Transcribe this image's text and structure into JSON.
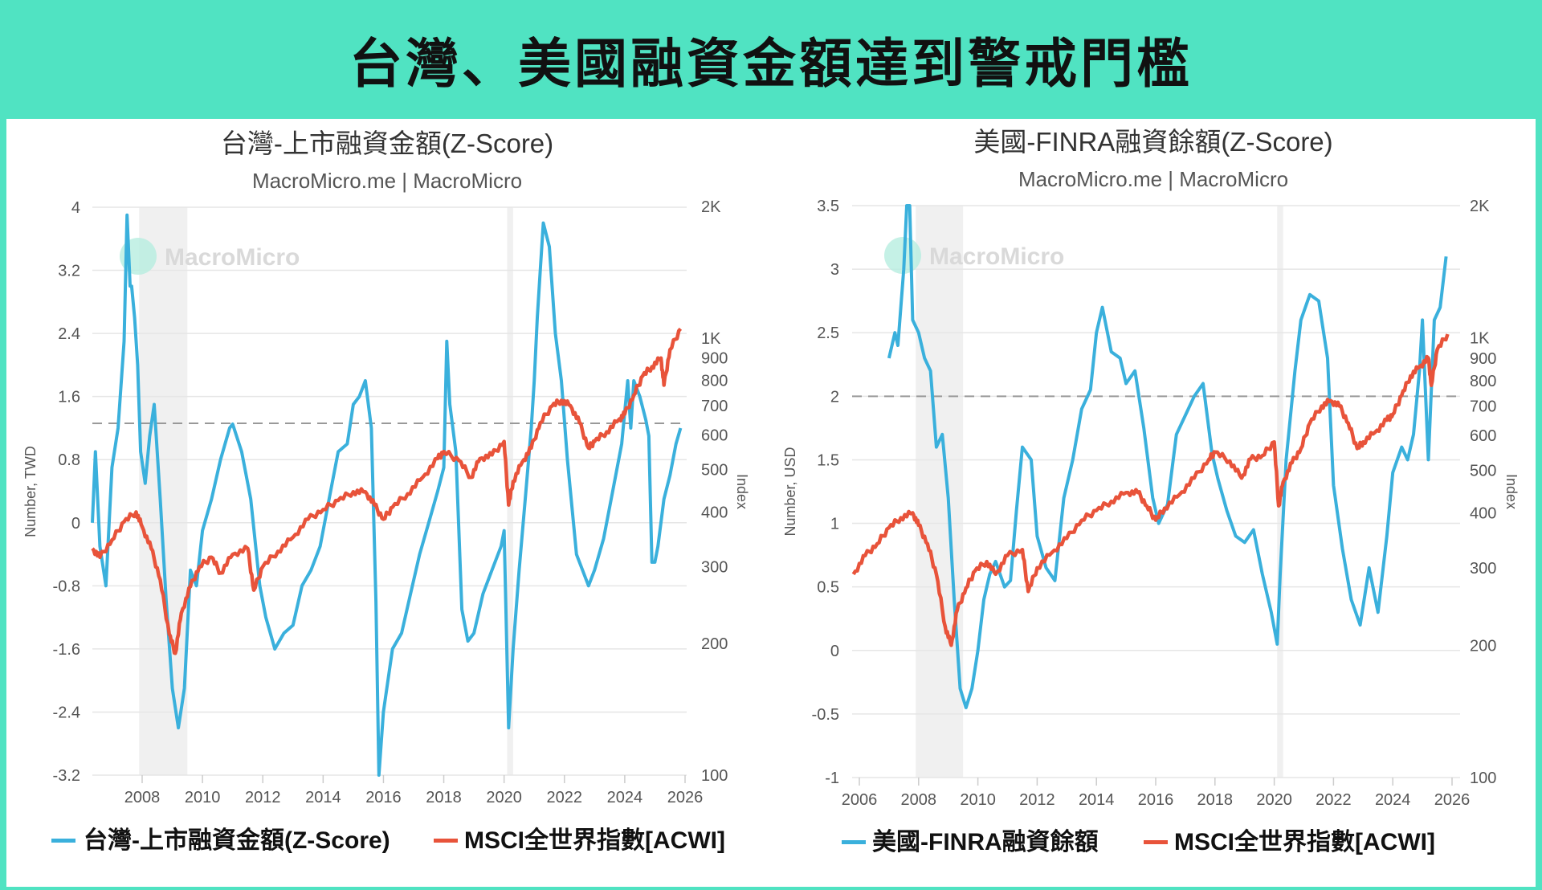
{
  "banner": {
    "title": "台灣、美國融資金額達到警戒門檻"
  },
  "colors": {
    "background": "#50e3c2",
    "zscore": "#3ab0dc",
    "msci": "#e8533a",
    "threshold": "#999999",
    "recession": "#f0f0f0"
  },
  "watermark": "MacroMicro",
  "left_chart": {
    "title": "台灣-上市融資金額(Z-Score)",
    "subtitle": "MacroMicro.me | MacroMicro",
    "y_left_label": "Number, TWD",
    "y_right_label": "Index",
    "y_left_ticks": [
      "4",
      "3.2",
      "2.4",
      "1.6",
      "0.8",
      "0",
      "-0.8",
      "-1.6",
      "-2.4",
      "-3.2"
    ],
    "y_right_ticks": [
      "2K",
      "1K",
      "900",
      "800",
      "700",
      "600",
      "500",
      "400",
      "300",
      "200",
      "100"
    ],
    "x_ticks": [
      "2008",
      "2010",
      "2012",
      "2014",
      "2016",
      "2018",
      "2020",
      "2022",
      "2024",
      "2026"
    ],
    "legend": [
      "台灣-上市融資金額(Z-Score)",
      "MSCI全世界指數[ACWI]"
    ]
  },
  "right_chart": {
    "title": "美國-FINRA融資餘額(Z-Score)",
    "subtitle": "MacroMicro.me | MacroMicro",
    "y_left_label": "Number, USD",
    "y_right_label": "Index",
    "y_left_ticks": [
      "3.5",
      "3",
      "2.5",
      "2",
      "1.5",
      "1",
      "0.5",
      "0",
      "-0.5",
      "-1"
    ],
    "y_right_ticks": [
      "2K",
      "1K",
      "900",
      "800",
      "700",
      "600",
      "500",
      "400",
      "300",
      "200",
      "100"
    ],
    "x_ticks": [
      "2006",
      "2008",
      "2010",
      "2012",
      "2014",
      "2016",
      "2018",
      "2020",
      "2022",
      "2024",
      "2026"
    ],
    "legend": [
      "美國-FINRA融資餘額",
      "MSCI全世界指數[ACWI]"
    ]
  },
  "chart_data": [
    {
      "type": "line",
      "title": "台灣-上市融資金額(Z-Score)",
      "subtitle": "MacroMicro.me | MacroMicro",
      "xlabel": "",
      "ylabel": "Number, TWD",
      "y2label": "Index",
      "ylim": [
        -3.2,
        4
      ],
      "y2lim": [
        100,
        2000
      ],
      "y2scale": "log",
      "xlim": [
        2006.3,
        2026
      ],
      "threshold": 1.26,
      "recessions": [
        [
          2007.9,
          2009.5
        ],
        [
          2020.1,
          2020.3
        ]
      ],
      "legend_position": "bottom",
      "grid": true,
      "series": [
        {
          "name": "台灣-上市融資金額(Z-Score)",
          "axis": "left",
          "x": [
            2006.35,
            2006.45,
            2006.6,
            2006.8,
            2007.0,
            2007.2,
            2007.4,
            2007.5,
            2007.6,
            2007.65,
            2007.75,
            2007.85,
            2007.95,
            2008.1,
            2008.25,
            2008.4,
            2008.6,
            2008.8,
            2009.0,
            2009.2,
            2009.4,
            2009.6,
            2009.8,
            2010.0,
            2010.3,
            2010.6,
            2010.9,
            2011.0,
            2011.3,
            2011.6,
            2011.9,
            2012.1,
            2012.4,
            2012.7,
            2013.0,
            2013.3,
            2013.6,
            2013.9,
            2014.2,
            2014.5,
            2014.8,
            2015.0,
            2015.2,
            2015.4,
            2015.6,
            2015.75,
            2015.85,
            2016.0,
            2016.3,
            2016.6,
            2016.9,
            2017.2,
            2017.5,
            2017.8,
            2018.0,
            2018.1,
            2018.2,
            2018.4,
            2018.6,
            2018.8,
            2019.0,
            2019.3,
            2019.6,
            2019.9,
            2020.0,
            2020.15,
            2020.3,
            2020.5,
            2020.7,
            2020.9,
            2021.0,
            2021.1,
            2021.2,
            2021.3,
            2021.5,
            2021.7,
            2021.9,
            2022.1,
            2022.4,
            2022.6,
            2022.8,
            2023.0,
            2023.3,
            2023.6,
            2023.9,
            2024.1,
            2024.2,
            2024.3,
            2024.5,
            2024.7,
            2024.8,
            2024.9,
            2025.0,
            2025.1,
            2025.3,
            2025.5,
            2025.7,
            2025.85
          ],
          "values": [
            0.0,
            0.9,
            -0.3,
            -0.8,
            0.7,
            1.2,
            2.3,
            3.9,
            3.0,
            3.0,
            2.6,
            2.0,
            0.9,
            0.5,
            1.1,
            1.5,
            0.3,
            -1.0,
            -2.1,
            -2.6,
            -2.1,
            -0.6,
            -0.8,
            -0.1,
            0.3,
            0.8,
            1.2,
            1.25,
            0.9,
            0.3,
            -0.8,
            -1.2,
            -1.6,
            -1.4,
            -1.3,
            -0.8,
            -0.6,
            -0.3,
            0.3,
            0.9,
            1.0,
            1.5,
            1.6,
            1.8,
            1.2,
            -1.0,
            -3.2,
            -2.4,
            -1.6,
            -1.4,
            -0.9,
            -0.4,
            0.0,
            0.4,
            0.7,
            2.3,
            1.5,
            0.9,
            -1.1,
            -1.5,
            -1.4,
            -0.9,
            -0.6,
            -0.3,
            -0.1,
            -2.6,
            -1.6,
            -0.6,
            0.3,
            1.2,
            1.8,
            2.6,
            3.2,
            3.8,
            3.5,
            2.4,
            1.8,
            0.8,
            -0.4,
            -0.6,
            -0.8,
            -0.6,
            -0.2,
            0.4,
            1.0,
            1.8,
            1.2,
            1.8,
            1.6,
            1.3,
            1.1,
            -0.5,
            -0.5,
            -0.3,
            0.3,
            0.6,
            1.0,
            1.2
          ]
        },
        {
          "name": "MSCI全世界指數[ACWI]",
          "axis": "right",
          "x": [
            2006.35,
            2006.6,
            2007.0,
            2007.4,
            2007.8,
            2008.0,
            2008.3,
            2008.6,
            2008.9,
            2009.1,
            2009.3,
            2009.6,
            2009.9,
            2010.3,
            2010.6,
            2011.0,
            2011.5,
            2011.7,
            2012.0,
            2012.5,
            2013.0,
            2013.5,
            2014.0,
            2014.5,
            2015.0,
            2015.4,
            2015.7,
            2016.0,
            2016.3,
            2016.8,
            2017.3,
            2017.8,
            2018.0,
            2018.5,
            2018.9,
            2019.2,
            2019.6,
            2020.0,
            2020.15,
            2020.3,
            2020.6,
            2020.9,
            2021.2,
            2021.6,
            2021.9,
            2022.2,
            2022.5,
            2022.8,
            2023.0,
            2023.4,
            2023.8,
            2024.0,
            2024.3,
            2024.6,
            2024.9,
            2025.2,
            2025.3,
            2025.5,
            2025.85
          ],
          "values": [
            330,
            315,
            345,
            380,
            400,
            370,
            330,
            280,
            210,
            190,
            235,
            270,
            300,
            315,
            290,
            320,
            330,
            265,
            300,
            325,
            350,
            385,
            405,
            425,
            445,
            445,
            415,
            385,
            410,
            440,
            480,
            530,
            550,
            525,
            480,
            530,
            540,
            580,
            415,
            470,
            520,
            560,
            640,
            700,
            720,
            700,
            640,
            560,
            580,
            610,
            650,
            670,
            740,
            820,
            860,
            900,
            780,
            940,
            1050
          ]
        }
      ]
    },
    {
      "type": "line",
      "title": "美國-FINRA融資餘額(Z-Score)",
      "subtitle": "MacroMicro.me | MacroMicro",
      "xlabel": "",
      "ylabel": "Number, USD",
      "y2label": "Index",
      "ylim": [
        -1,
        3.5
      ],
      "y2lim": [
        100,
        2000
      ],
      "y2scale": "log",
      "xlim": [
        2005.8,
        2026
      ],
      "threshold": 2.0,
      "recessions": [
        [
          2007.9,
          2009.5
        ],
        [
          2020.1,
          2020.3
        ]
      ],
      "legend_position": "bottom",
      "grid": true,
      "series": [
        {
          "name": "美國-FINRA融資餘額",
          "axis": "left",
          "x": [
            2007.0,
            2007.2,
            2007.3,
            2007.5,
            2007.6,
            2007.7,
            2007.8,
            2008.0,
            2008.2,
            2008.4,
            2008.6,
            2008.8,
            2009.0,
            2009.2,
            2009.4,
            2009.6,
            2009.8,
            2010.0,
            2010.2,
            2010.4,
            2010.6,
            2010.9,
            2011.1,
            2011.3,
            2011.5,
            2011.8,
            2012.0,
            2012.3,
            2012.6,
            2012.9,
            2013.2,
            2013.5,
            2013.8,
            2014.0,
            2014.2,
            2014.5,
            2014.8,
            2015.0,
            2015.3,
            2015.6,
            2015.9,
            2016.1,
            2016.4,
            2016.7,
            2017.0,
            2017.3,
            2017.6,
            2017.9,
            2018.1,
            2018.4,
            2018.7,
            2019.0,
            2019.3,
            2019.6,
            2019.9,
            2020.1,
            2020.2,
            2020.4,
            2020.7,
            2020.9,
            2021.2,
            2021.5,
            2021.8,
            2022.0,
            2022.3,
            2022.6,
            2022.9,
            2023.2,
            2023.5,
            2023.8,
            2024.0,
            2024.3,
            2024.5,
            2024.7,
            2024.9,
            2025.0,
            2025.2,
            2025.4,
            2025.6,
            2025.8
          ],
          "values": [
            2.3,
            2.5,
            2.4,
            3.0,
            3.5,
            3.5,
            2.6,
            2.5,
            2.3,
            2.2,
            1.6,
            1.7,
            1.2,
            0.4,
            -0.3,
            -0.45,
            -0.3,
            0.0,
            0.4,
            0.6,
            0.7,
            0.5,
            0.55,
            1.1,
            1.6,
            1.5,
            0.9,
            0.65,
            0.55,
            1.2,
            1.5,
            1.9,
            2.05,
            2.5,
            2.7,
            2.35,
            2.3,
            2.1,
            2.2,
            1.75,
            1.2,
            1.0,
            1.15,
            1.7,
            1.85,
            2.0,
            2.1,
            1.55,
            1.35,
            1.1,
            0.9,
            0.85,
            0.95,
            0.6,
            0.3,
            0.05,
            0.6,
            1.5,
            2.2,
            2.6,
            2.8,
            2.75,
            2.3,
            1.3,
            0.8,
            0.4,
            0.2,
            0.65,
            0.3,
            0.9,
            1.4,
            1.6,
            1.5,
            1.7,
            2.2,
            2.6,
            1.5,
            2.6,
            2.7,
            3.1
          ]
        },
        {
          "name": "MSCI全世界指數[ACWI]",
          "axis": "right",
          "x": [
            2005.8,
            2006.2,
            2006.6,
            2007.0,
            2007.4,
            2007.8,
            2008.0,
            2008.3,
            2008.6,
            2008.9,
            2009.1,
            2009.3,
            2009.6,
            2009.9,
            2010.3,
            2010.6,
            2011.0,
            2011.5,
            2011.7,
            2012.0,
            2012.5,
            2013.0,
            2013.5,
            2014.0,
            2014.5,
            2015.0,
            2015.4,
            2015.7,
            2016.0,
            2016.3,
            2016.8,
            2017.3,
            2017.8,
            2018.0,
            2018.5,
            2018.9,
            2019.2,
            2019.6,
            2020.0,
            2020.15,
            2020.3,
            2020.6,
            2020.9,
            2021.2,
            2021.6,
            2021.9,
            2022.2,
            2022.5,
            2022.8,
            2023.0,
            2023.4,
            2023.8,
            2024.0,
            2024.3,
            2024.6,
            2024.9,
            2025.2,
            2025.3,
            2025.5,
            2025.85
          ],
          "values": [
            290,
            320,
            340,
            370,
            390,
            400,
            375,
            340,
            290,
            220,
            200,
            240,
            270,
            295,
            310,
            290,
            320,
            330,
            265,
            300,
            325,
            350,
            385,
            405,
            425,
            445,
            445,
            415,
            385,
            410,
            440,
            480,
            530,
            550,
            525,
            480,
            530,
            540,
            580,
            415,
            470,
            520,
            560,
            640,
            700,
            720,
            700,
            640,
            560,
            580,
            610,
            650,
            670,
            740,
            820,
            860,
            900,
            780,
            940,
            1020
          ]
        }
      ]
    }
  ]
}
